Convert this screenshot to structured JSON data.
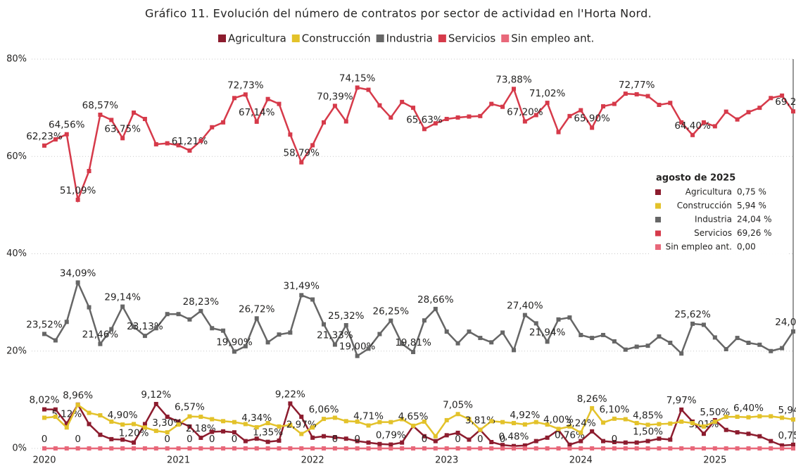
{
  "chart_data": {
    "type": "line",
    "title": "Gráfico 11. Evolución del número de contratos por sector de actividad en l'Horta Nord.",
    "x": [
      0,
      1,
      2,
      3,
      4,
      5,
      6,
      7,
      8,
      9,
      10,
      11,
      12,
      13,
      14,
      15,
      16,
      17,
      18,
      19,
      20,
      21,
      22,
      23,
      24,
      25,
      26,
      27,
      28,
      29,
      30,
      31,
      32,
      33,
      34,
      35,
      36,
      37,
      38,
      39,
      40,
      41,
      42,
      43,
      44,
      45,
      46,
      47,
      48,
      49,
      50,
      51,
      52,
      53,
      54,
      55,
      56,
      57,
      58,
      59,
      60,
      61,
      62,
      63,
      64,
      65,
      66,
      67
    ],
    "xlim": [
      0,
      67
    ],
    "xticks": [
      {
        "value": 0,
        "label": "2020"
      },
      {
        "value": 12,
        "label": "2021"
      },
      {
        "value": 24,
        "label": "2022"
      },
      {
        "value": 36,
        "label": "2023"
      },
      {
        "value": 48,
        "label": "2024"
      },
      {
        "value": 60,
        "label": "2025"
      }
    ],
    "ylim": [
      0,
      80
    ],
    "yticks": [
      {
        "value": 0,
        "label": "0%"
      },
      {
        "value": 20,
        "label": "20%"
      },
      {
        "value": 40,
        "label": "40%"
      },
      {
        "value": 60,
        "label": "60%"
      },
      {
        "value": 80,
        "label": "80%"
      }
    ],
    "grid": true,
    "series": [
      {
        "name": "Agricultura",
        "color": "#8c1c2e",
        "values": [
          8.02,
          8,
          5.12,
          9,
          5,
          2.8,
          1.9,
          1.8,
          1.2,
          5,
          9.12,
          6.5,
          5.5,
          4.5,
          2.18,
          3.4,
          3.5,
          3.3,
          1.5,
          2,
          1.35,
          1.6,
          9.22,
          6.5,
          2.2,
          2.5,
          2.3,
          2,
          1.5,
          1.2,
          0.9,
          0.79,
          1.2,
          4.6,
          2.5,
          1.5,
          2.7,
          3.2,
          1.8,
          3.8,
          1.3,
          0.7,
          0.48,
          0.6,
          1.5,
          2.2,
          3.8,
          0.76,
          1.5,
          3.5,
          1.5,
          1.3,
          1.2,
          1.2,
          1.5,
          2,
          1.8,
          7.97,
          5.5,
          3.01,
          5.8,
          3.8,
          3.3,
          3,
          2.5,
          1.5,
          0.6,
          0.75
        ],
        "value_labels": [
          "8,02%",
          null,
          "5,12%",
          null,
          null,
          null,
          null,
          null,
          "1,20%",
          null,
          "9,12%",
          null,
          null,
          null,
          "2,18%",
          null,
          null,
          null,
          null,
          null,
          "1,35%",
          null,
          "9,22%",
          null,
          null,
          null,
          null,
          null,
          null,
          null,
          null,
          "0,79%",
          null,
          null,
          null,
          null,
          null,
          null,
          null,
          null,
          null,
          null,
          "0,48%",
          null,
          null,
          null,
          null,
          "0,76%",
          null,
          null,
          null,
          null,
          null,
          null,
          "1,50%",
          null,
          null,
          "7,97%",
          null,
          "3,01%",
          null,
          null,
          null,
          null,
          null,
          null,
          null,
          "0,75%"
        ]
      },
      {
        "name": "Construcción",
        "color": "#e3c22a",
        "values": [
          6.3,
          6.5,
          4.3,
          8.96,
          7.3,
          6.8,
          5.5,
          4.9,
          5,
          4.3,
          3.6,
          3.3,
          4.9,
          6.57,
          6.5,
          6,
          5.6,
          5.4,
          5,
          4.34,
          5.2,
          4.5,
          4.8,
          2.97,
          4.3,
          6.06,
          6.3,
          5.6,
          5.5,
          4.71,
          5.4,
          5.4,
          6,
          4.65,
          5.5,
          2.5,
          5.8,
          7.05,
          6,
          3.81,
          5.6,
          5.4,
          5.2,
          4.92,
          5.4,
          4.9,
          4,
          4.5,
          3.24,
          8.26,
          5.3,
          6.1,
          6,
          5.2,
          4.85,
          5,
          5.1,
          5.5,
          5.2,
          4.5,
          5.5,
          6.5,
          6.5,
          6.4,
          6.6,
          6.6,
          6.3,
          5.94
        ],
        "value_labels": [
          null,
          null,
          null,
          "8,96%",
          null,
          null,
          null,
          "4,90%",
          null,
          null,
          null,
          "3,30%",
          null,
          "6,57%",
          null,
          null,
          null,
          null,
          null,
          "4,34%",
          null,
          null,
          null,
          "2,97%",
          null,
          "6,06%",
          null,
          null,
          null,
          "4,71%",
          null,
          null,
          null,
          "4,65%",
          null,
          null,
          null,
          "7,05%",
          null,
          "3,81%",
          null,
          null,
          null,
          "4,92%",
          null,
          null,
          "4,00%",
          null,
          "3,24%",
          "8,26%",
          null,
          "6,10%",
          null,
          null,
          "4,85%",
          null,
          null,
          null,
          null,
          null,
          "5,50%",
          null,
          null,
          "6,40%",
          null,
          null,
          null,
          "5,94%"
        ]
      },
      {
        "name": "Industria",
        "color": "#666666",
        "values": [
          23.52,
          22.2,
          26,
          34.09,
          29,
          21.46,
          24.5,
          29.14,
          25,
          23.13,
          24.7,
          27.6,
          27.6,
          26.5,
          28.23,
          24.7,
          24.2,
          19.9,
          21,
          26.72,
          21.8,
          23.4,
          23.8,
          31.49,
          30.6,
          25.5,
          21.33,
          25.32,
          19,
          20.5,
          23.5,
          26.25,
          21.5,
          19.81,
          26.3,
          28.66,
          24,
          21.6,
          24,
          22.7,
          21.8,
          23.8,
          20.2,
          27.4,
          25.7,
          21.94,
          26.5,
          26.9,
          23.3,
          22.7,
          23.3,
          22,
          20.3,
          20.9,
          21.1,
          23,
          21.7,
          19.5,
          25.62,
          25.4,
          22.8,
          20.4,
          22.7,
          21.7,
          21.3,
          20,
          20.6,
          24.04
        ],
        "value_labels": [
          "23,52%",
          null,
          null,
          "34,09%",
          null,
          "21,46%",
          null,
          "29,14%",
          null,
          "23,13%",
          null,
          null,
          null,
          null,
          "28,23%",
          null,
          null,
          "19,90%",
          null,
          "26,72%",
          null,
          null,
          null,
          "31,49%",
          null,
          null,
          "21,33%",
          "25,32%",
          "19,00%",
          null,
          null,
          "26,25%",
          null,
          "19,81%",
          null,
          "28,66%",
          null,
          null,
          null,
          null,
          null,
          null,
          null,
          "27,40%",
          null,
          "21,94%",
          null,
          null,
          null,
          null,
          null,
          null,
          null,
          null,
          null,
          null,
          null,
          null,
          "25,62%",
          null,
          null,
          null,
          null,
          null,
          null,
          null,
          null,
          "24,04%"
        ]
      },
      {
        "name": "Servicios",
        "color": "#d63a4a",
        "values": [
          62.23,
          63.5,
          64.56,
          51.09,
          57,
          68.57,
          67.5,
          63.75,
          69,
          67.7,
          62.5,
          62.7,
          62.3,
          61.21,
          63.2,
          66,
          67,
          72,
          72.73,
          67.14,
          71.8,
          70.8,
          64.5,
          58.79,
          62.3,
          67,
          70.39,
          67.2,
          74.15,
          73.7,
          70.5,
          68,
          71.2,
          70,
          65.63,
          66.8,
          67.7,
          68,
          68.2,
          68.3,
          70.8,
          70.2,
          73.88,
          67.2,
          68.5,
          71.02,
          65,
          68.3,
          69.5,
          65.9,
          70.3,
          70.8,
          72.9,
          72.77,
          72.4,
          70.6,
          71,
          67,
          64.4,
          67,
          66.2,
          69.2,
          67.6,
          69.1,
          70,
          72,
          72.5,
          69.26
        ],
        "value_labels": [
          "62,23%",
          null,
          "64,56%",
          "51,09%",
          null,
          "68,57%",
          null,
          "63,75%",
          null,
          null,
          null,
          null,
          null,
          "61,21%",
          null,
          null,
          null,
          null,
          "72,73%",
          "67,14%",
          null,
          null,
          null,
          "58,79%",
          null,
          null,
          "70,39%",
          null,
          "74,15%",
          null,
          null,
          null,
          null,
          null,
          "65,63%",
          null,
          null,
          null,
          null,
          null,
          null,
          null,
          "73,88%",
          "67,20%",
          null,
          "71,02%",
          null,
          null,
          null,
          "65,90%",
          null,
          null,
          null,
          "72,77%",
          null,
          null,
          null,
          null,
          "64,40%",
          null,
          null,
          null,
          null,
          null,
          null,
          null,
          null,
          "69,26%"
        ]
      },
      {
        "name": "Sin empleo ant.",
        "color": "#e8687a",
        "values": [
          0,
          0,
          0,
          0,
          0,
          0,
          0,
          0,
          0,
          0,
          0,
          0,
          0,
          0,
          0,
          0,
          0,
          0,
          0,
          0,
          0,
          0,
          0,
          0,
          0,
          0,
          0,
          0,
          0,
          0,
          0,
          0,
          0,
          0,
          0,
          0,
          0,
          0,
          0,
          0,
          0,
          0,
          0,
          0,
          0,
          0,
          0,
          0,
          0,
          0,
          0,
          0,
          0,
          0,
          0,
          0,
          0,
          0,
          0,
          0,
          0,
          0,
          0,
          0,
          0,
          0,
          0,
          0
        ],
        "value_labels": [
          "0",
          null,
          null,
          "0",
          null,
          null,
          null,
          null,
          null,
          null,
          null,
          "0",
          null,
          "0",
          null,
          "0",
          null,
          "0",
          null,
          null,
          null,
          null,
          null,
          null,
          null,
          null,
          "0",
          null,
          "0",
          null,
          null,
          null,
          null,
          null,
          "0",
          null,
          null,
          "0",
          null,
          "0",
          null,
          "0",
          null,
          null,
          null,
          null,
          null,
          null,
          null,
          null,
          null,
          "0",
          null,
          null,
          null,
          null,
          null,
          null,
          null,
          null,
          null,
          null,
          null,
          null,
          null,
          null,
          null,
          null
        ]
      }
    ],
    "legend": "top",
    "tooltip": {
      "title": "agosto de 2025",
      "rows": [
        {
          "name": "Agricultura",
          "value": "0,75 %"
        },
        {
          "name": "Construcción",
          "value": "5,94 %"
        },
        {
          "name": "Industria",
          "value": "24,04 %"
        },
        {
          "name": "Servicios",
          "value": "69,26 %"
        },
        {
          "name": "Sin empleo ant.",
          "value": "0,00"
        }
      ]
    }
  }
}
